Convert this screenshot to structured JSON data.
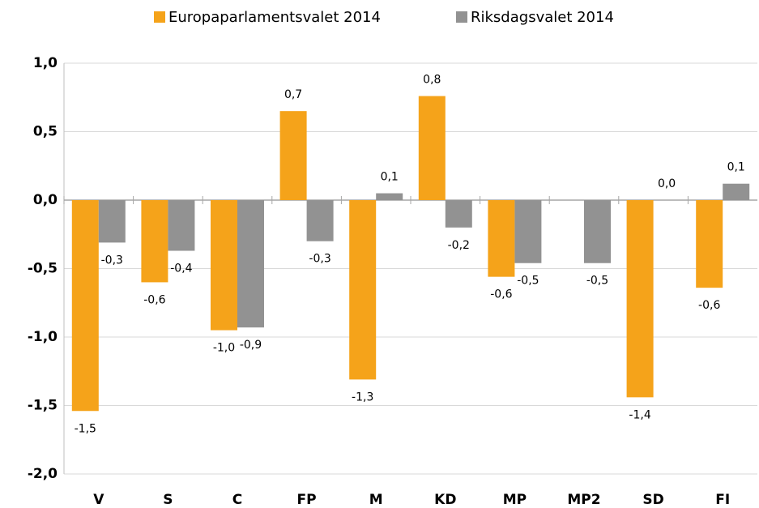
{
  "chart_data": {
    "type": "bar",
    "categories": [
      "V",
      "S",
      "C",
      "FP",
      "M",
      "KD",
      "MP",
      "MP2",
      "SD",
      "FI"
    ],
    "series": [
      {
        "name": "Europaparlamentsvalet 2014",
        "color": "#f5a31a",
        "values": [
          -1.54,
          -0.6,
          -0.95,
          0.65,
          -1.31,
          0.76,
          -0.56,
          null,
          -1.44,
          -0.64
        ],
        "value_labels": [
          "-1,5",
          "-0,6",
          "-1,0",
          "0,7",
          "-1,3",
          "0,8",
          "-0,6",
          null,
          "-1,4",
          "-0,6"
        ]
      },
      {
        "name": "Riksdagsvalet 2014",
        "color": "#929292",
        "values": [
          -0.31,
          -0.37,
          -0.93,
          -0.3,
          0.05,
          -0.2,
          -0.46,
          -0.46,
          0.0,
          0.12
        ],
        "value_labels": [
          "-0,3",
          "-0,4",
          "-0,9",
          "-0,3",
          "0,1",
          "-0,2",
          "-0,5",
          "-0,5",
          "0,0",
          "0,1"
        ]
      }
    ],
    "ylim": [
      -2,
      1
    ],
    "yticks": [
      {
        "value": -2,
        "label": "-2,0"
      },
      {
        "value": -1.5,
        "label": "-1,5"
      },
      {
        "value": -1,
        "label": "-1,0"
      },
      {
        "value": -0.5,
        "label": "-0,5"
      },
      {
        "value": 0,
        "label": "0,0"
      },
      {
        "value": 0.5,
        "label": "0,5"
      },
      {
        "value": 1,
        "label": "1,0"
      }
    ],
    "grid": true
  }
}
